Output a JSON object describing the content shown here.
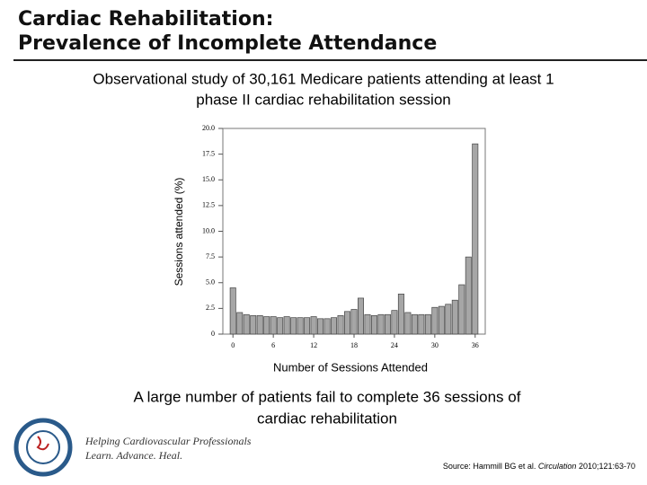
{
  "slide": {
    "title": [
      "Cardiac Rehabilitation:",
      "Prevalence of Incomplete Attendance"
    ],
    "subtitle": [
      "Observational study of 30,161 Medicare patients attending at least 1",
      "phase II cardiac rehabilitation session"
    ],
    "annotation": [
      "A large number of patients fail to complete 36 sessions of",
      "cardiac rehabilitation"
    ],
    "logo": [
      "Helping Cardiovascular Professionals",
      "Learn. Advance. Heal."
    ],
    "source": {
      "prefix": "Source: Hammill BG et al.",
      "journal": "Circulation",
      "citation": "2010;121:63-70"
    }
  },
  "chart_data": {
    "type": "bar",
    "ylabel": "Sessions attended (%)",
    "xlabel": "Number of Sessions Attended",
    "x": [
      0,
      1,
      2,
      3,
      4,
      5,
      6,
      7,
      8,
      9,
      10,
      11,
      12,
      13,
      14,
      15,
      16,
      17,
      18,
      19,
      20,
      21,
      22,
      23,
      24,
      25,
      26,
      27,
      28,
      29,
      30,
      31,
      32,
      33,
      34,
      35,
      36
    ],
    "values": [
      4.5,
      2.1,
      1.9,
      1.8,
      1.8,
      1.7,
      1.7,
      1.6,
      1.7,
      1.6,
      1.6,
      1.6,
      1.7,
      1.5,
      1.5,
      1.6,
      1.8,
      2.2,
      2.4,
      3.5,
      1.9,
      1.8,
      1.9,
      1.9,
      2.3,
      3.9,
      2.1,
      1.9,
      1.9,
      1.9,
      2.6,
      2.7,
      2.9,
      3.3,
      4.8,
      7.5,
      18.5
    ],
    "color": "#a6a6a6",
    "xlim": [
      -1.5,
      37.5
    ],
    "ylim": [
      0,
      20
    ],
    "xticks": [
      0,
      6,
      12,
      18,
      24,
      30,
      36
    ],
    "yticks": [
      0,
      2.5,
      {
        "value": 5,
        "label": "5.0"
      },
      7.5,
      {
        "value": 10,
        "label": "10.0"
      },
      12.5,
      {
        "value": 15,
        "label": "15.0"
      },
      17.5,
      {
        "value": 20,
        "label": "20.0"
      }
    ]
  }
}
